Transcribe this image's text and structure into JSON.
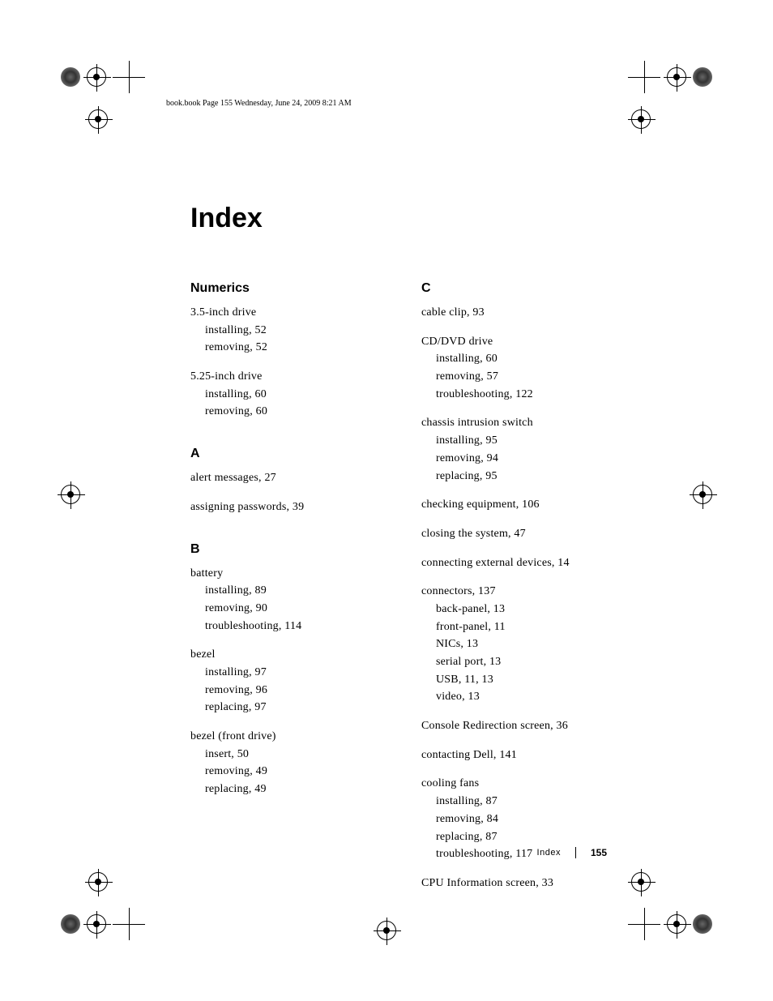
{
  "header": {
    "running": "book.book  Page 155  Wednesday, June 24, 2009  8:21 AM"
  },
  "title": "Index",
  "left": {
    "sections": [
      {
        "head": "Numerics",
        "entries": [
          {
            "main": "3.5-inch drive",
            "subs": [
              "installing, 52",
              "removing, 52"
            ]
          },
          {
            "main": "5.25-inch drive",
            "subs": [
              "installing, 60",
              "removing, 60"
            ]
          }
        ]
      },
      {
        "head": "A",
        "entries": [
          {
            "main": "alert messages, 27",
            "subs": []
          },
          {
            "main": "assigning passwords, 39",
            "subs": []
          }
        ]
      },
      {
        "head": "B",
        "entries": [
          {
            "main": "battery",
            "subs": [
              "installing, 89",
              "removing, 90",
              "troubleshooting, 114"
            ]
          },
          {
            "main": "bezel",
            "subs": [
              "installing, 97",
              "removing, 96",
              "replacing, 97"
            ]
          },
          {
            "main": "bezel (front drive)",
            "subs": [
              "insert, 50",
              "removing, 49",
              "replacing, 49"
            ]
          }
        ]
      }
    ]
  },
  "right": {
    "sections": [
      {
        "head": "C",
        "entries": [
          {
            "main": "cable clip, 93",
            "subs": []
          },
          {
            "main": "CD/DVD drive",
            "subs": [
              "installing, 60",
              "removing, 57",
              "troubleshooting, 122"
            ]
          },
          {
            "main": "chassis intrusion switch",
            "subs": [
              "installing, 95",
              "removing, 94",
              "replacing, 95"
            ]
          },
          {
            "main": "checking equipment, 106",
            "subs": []
          },
          {
            "main": "closing the system, 47",
            "subs": []
          },
          {
            "main": "connecting external devices, 14",
            "subs": []
          },
          {
            "main": "connectors, 137",
            "subs": [
              "back-panel, 13",
              "front-panel, 11",
              "NICs, 13",
              "serial port, 13",
              "USB, 11, 13",
              "video, 13"
            ]
          },
          {
            "main": "Console Redirection screen, 36",
            "subs": []
          },
          {
            "main": "contacting Dell, 141",
            "subs": []
          },
          {
            "main": "cooling fans",
            "subs": [
              "installing, 87",
              "removing, 84",
              "replacing, 87",
              "troubleshooting, 117"
            ]
          },
          {
            "main": "CPU Information screen, 33",
            "subs": []
          }
        ]
      }
    ]
  },
  "footer": {
    "label": "Index",
    "page": "155"
  }
}
